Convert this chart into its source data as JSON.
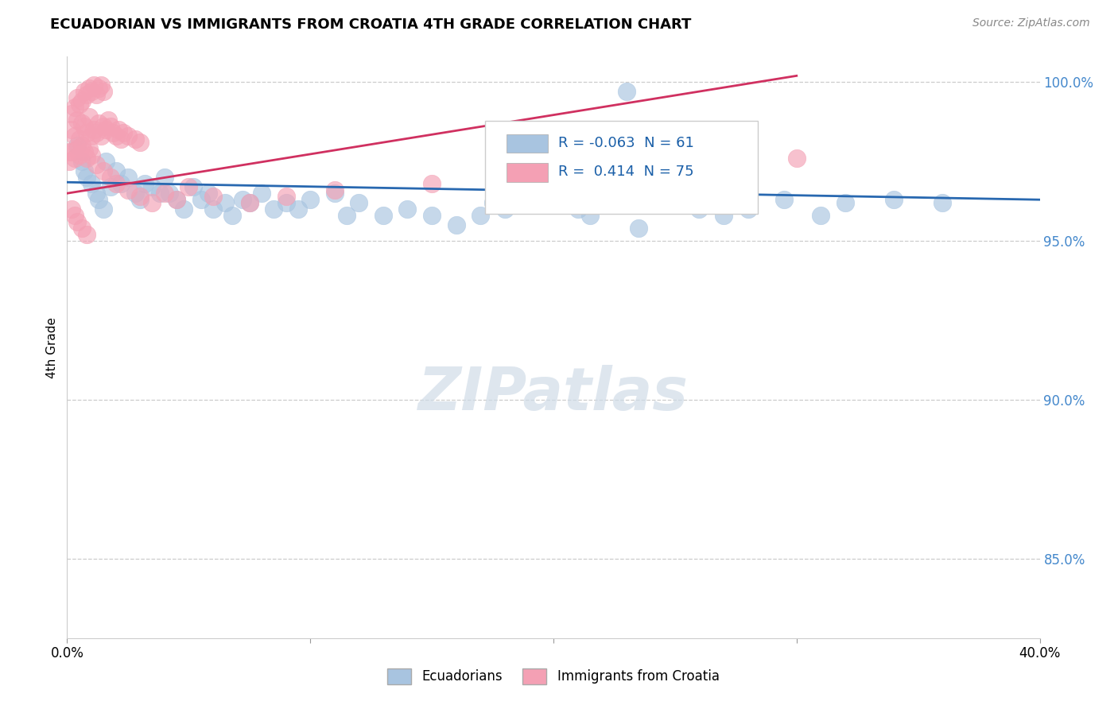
{
  "title": "ECUADORIAN VS IMMIGRANTS FROM CROATIA 4TH GRADE CORRELATION CHART",
  "source_text": "Source: ZipAtlas.com",
  "ylabel": "4th Grade",
  "legend_blue_r": "-0.063",
  "legend_blue_n": "61",
  "legend_pink_r": "0.414",
  "legend_pink_n": "75",
  "blue_color": "#a8c4e0",
  "pink_color": "#f4a0b4",
  "blue_line_color": "#2868b0",
  "pink_line_color": "#d03060",
  "watermark_text": "ZIPatlas",
  "xmin": 0.0,
  "xmax": 0.4,
  "ymin": 0.825,
  "ymax": 1.008,
  "yticks": [
    0.85,
    0.9,
    0.95,
    1.0
  ],
  "ytick_labels": [
    "85.0%",
    "90.0%",
    "95.0%",
    "100.0%"
  ],
  "blue_scatter_x": [
    0.004,
    0.006,
    0.007,
    0.008,
    0.01,
    0.012,
    0.013,
    0.015,
    0.016,
    0.018,
    0.02,
    0.022,
    0.025,
    0.028,
    0.03,
    0.032,
    0.035,
    0.038,
    0.04,
    0.042,
    0.045,
    0.048,
    0.052,
    0.055,
    0.058,
    0.06,
    0.065,
    0.068,
    0.072,
    0.075,
    0.08,
    0.085,
    0.09,
    0.095,
    0.1,
    0.11,
    0.115,
    0.12,
    0.13,
    0.14,
    0.15,
    0.16,
    0.17,
    0.175,
    0.18,
    0.195,
    0.2,
    0.21,
    0.215,
    0.22,
    0.235,
    0.25,
    0.26,
    0.27,
    0.28,
    0.295,
    0.31,
    0.32,
    0.34,
    0.36,
    0.23
  ],
  "blue_scatter_y": [
    0.98,
    0.975,
    0.972,
    0.97,
    0.968,
    0.965,
    0.963,
    0.96,
    0.975,
    0.967,
    0.972,
    0.968,
    0.97,
    0.965,
    0.963,
    0.968,
    0.967,
    0.965,
    0.97,
    0.965,
    0.963,
    0.96,
    0.967,
    0.963,
    0.965,
    0.96,
    0.962,
    0.958,
    0.963,
    0.962,
    0.965,
    0.96,
    0.962,
    0.96,
    0.963,
    0.965,
    0.958,
    0.962,
    0.958,
    0.96,
    0.958,
    0.955,
    0.958,
    0.962,
    0.96,
    0.964,
    0.962,
    0.96,
    0.958,
    0.966,
    0.954,
    0.967,
    0.96,
    0.958,
    0.96,
    0.963,
    0.958,
    0.962,
    0.963,
    0.962,
    0.997
  ],
  "pink_scatter_x": [
    0.001,
    0.002,
    0.002,
    0.003,
    0.003,
    0.004,
    0.004,
    0.005,
    0.005,
    0.006,
    0.006,
    0.007,
    0.007,
    0.008,
    0.008,
    0.009,
    0.009,
    0.01,
    0.01,
    0.011,
    0.011,
    0.012,
    0.012,
    0.013,
    0.013,
    0.014,
    0.014,
    0.015,
    0.015,
    0.016,
    0.017,
    0.018,
    0.019,
    0.02,
    0.021,
    0.022,
    0.023,
    0.025,
    0.028,
    0.03,
    0.001,
    0.002,
    0.003,
    0.004,
    0.005,
    0.006,
    0.007,
    0.008,
    0.009,
    0.01,
    0.012,
    0.015,
    0.018,
    0.02,
    0.025,
    0.03,
    0.035,
    0.04,
    0.045,
    0.05,
    0.06,
    0.075,
    0.09,
    0.11,
    0.15,
    0.18,
    0.21,
    0.25,
    0.28,
    0.3,
    0.002,
    0.003,
    0.004,
    0.006,
    0.008
  ],
  "pink_scatter_y": [
    0.978,
    0.985,
    0.99,
    0.983,
    0.992,
    0.988,
    0.995,
    0.982,
    0.993,
    0.987,
    0.994,
    0.986,
    0.997,
    0.984,
    0.996,
    0.989,
    0.998,
    0.983,
    0.997,
    0.985,
    0.999,
    0.984,
    0.996,
    0.987,
    0.998,
    0.983,
    0.999,
    0.986,
    0.997,
    0.985,
    0.988,
    0.986,
    0.984,
    0.983,
    0.985,
    0.982,
    0.984,
    0.983,
    0.982,
    0.981,
    0.975,
    0.978,
    0.976,
    0.979,
    0.977,
    0.98,
    0.978,
    0.976,
    0.979,
    0.977,
    0.974,
    0.972,
    0.97,
    0.968,
    0.966,
    0.964,
    0.962,
    0.965,
    0.963,
    0.967,
    0.964,
    0.962,
    0.964,
    0.966,
    0.968,
    0.97,
    0.972,
    0.974,
    0.975,
    0.976,
    0.96,
    0.958,
    0.956,
    0.954,
    0.952
  ],
  "blue_line_x": [
    0.0,
    0.4
  ],
  "blue_line_y": [
    0.9685,
    0.963
  ],
  "pink_line_x": [
    0.0,
    0.3
  ],
  "pink_line_y": [
    0.965,
    1.002
  ]
}
